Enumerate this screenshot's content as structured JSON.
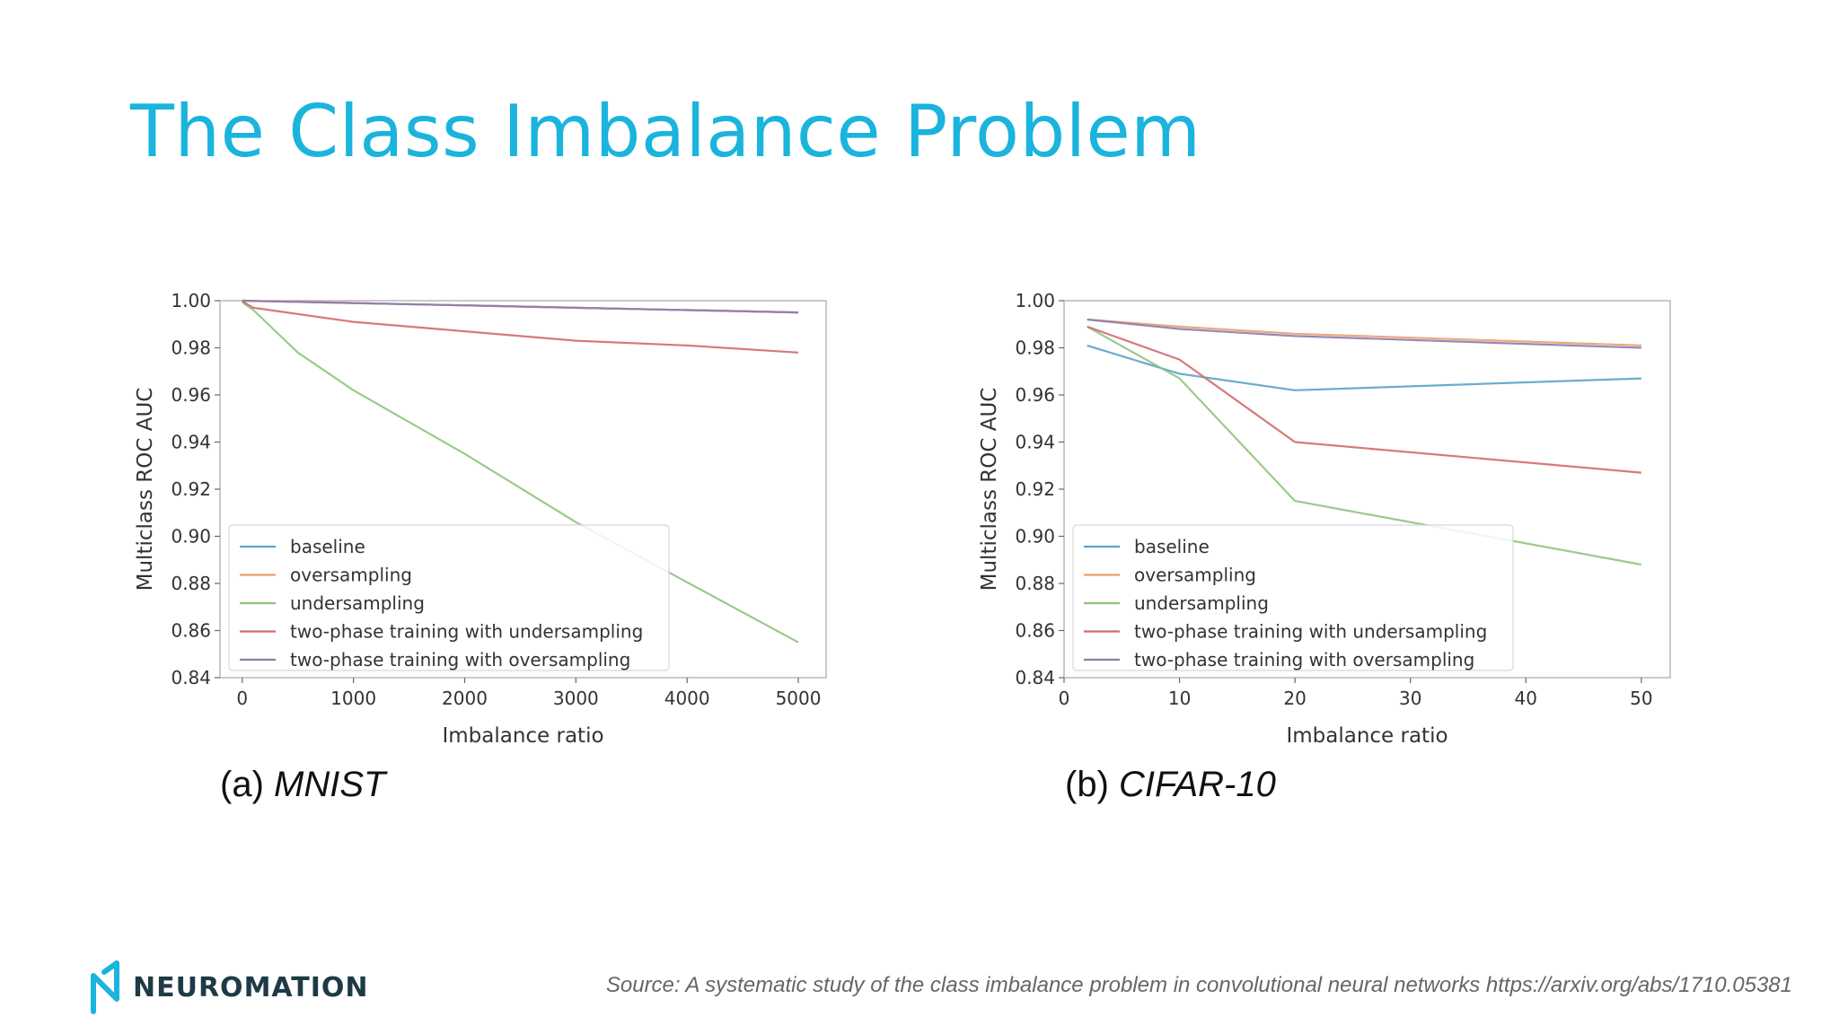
{
  "slide": {
    "title": "The Class Imbalance Problem",
    "source": "Source: A systematic study of the class imbalance problem in convolutional neural networks https://arxiv.org/abs/1710.05381",
    "logo_text": "NEUROMATION",
    "logo_icon": "neuromation-logo-icon",
    "caption_a_label": "(a)",
    "caption_a_name": "MNIST",
    "caption_b_label": "(b)",
    "caption_b_name": "CIFAR-10",
    "colors": {
      "title": "#1ab4dd",
      "logo": "#1f3a47"
    }
  },
  "chart_data": [
    {
      "type": "line",
      "title": "",
      "xlabel": "Imbalance ratio",
      "ylabel": "Multiclass ROC AUC",
      "xlim": [
        -200,
        5250
      ],
      "ylim": [
        0.84,
        1.0
      ],
      "xticks": [
        0,
        1000,
        2000,
        3000,
        4000,
        5000
      ],
      "xtick_labels": [
        "0",
        "1000",
        "2000",
        "3000",
        "4000",
        "5000"
      ],
      "yticks": [
        0.84,
        0.86,
        0.88,
        0.9,
        0.92,
        0.94,
        0.96,
        0.98,
        1.0
      ],
      "ytick_labels": [
        "0.84",
        "0.86",
        "0.88",
        "0.90",
        "0.92",
        "0.94",
        "0.96",
        "0.98",
        "1.00"
      ],
      "legend_position": "lower-left",
      "series": [
        {
          "name": "baseline",
          "color": "#5aa3c8",
          "x": [
            1,
            10,
            100,
            1000,
            5000
          ],
          "values": [
            1.0,
            1.0,
            0.9999,
            0.999,
            0.995
          ]
        },
        {
          "name": "oversampling",
          "color": "#e8a070",
          "x": [
            1,
            10,
            100,
            1000,
            5000
          ],
          "values": [
            1.0,
            1.0,
            0.9999,
            0.999,
            0.995
          ]
        },
        {
          "name": "undersampling",
          "color": "#8fc47e",
          "x": [
            1,
            10,
            100,
            500,
            1000,
            2000,
            3000,
            5000
          ],
          "values": [
            1.0,
            0.999,
            0.996,
            0.978,
            0.962,
            0.935,
            0.906,
            0.855
          ]
        },
        {
          "name": "two-phase training with undersampling",
          "color": "#d46a6a",
          "x": [
            1,
            10,
            100,
            1000,
            2000,
            3000,
            4000,
            5000
          ],
          "values": [
            1.0,
            0.9995,
            0.997,
            0.991,
            0.987,
            0.983,
            0.981,
            0.978
          ]
        },
        {
          "name": "two-phase training with oversampling",
          "color": "#8f7ab0",
          "x": [
            1,
            10,
            100,
            1000,
            5000
          ],
          "values": [
            1.0,
            1.0,
            0.9999,
            0.999,
            0.995
          ]
        }
      ]
    },
    {
      "type": "line",
      "title": "",
      "xlabel": "Imbalance ratio",
      "ylabel": "Multiclass ROC AUC",
      "xlim": [
        0,
        52.5
      ],
      "ylim": [
        0.84,
        1.0
      ],
      "xticks": [
        0,
        10,
        20,
        30,
        40,
        50
      ],
      "xtick_labels": [
        "0",
        "10",
        "20",
        "30",
        "40",
        "50"
      ],
      "yticks": [
        0.84,
        0.86,
        0.88,
        0.9,
        0.92,
        0.94,
        0.96,
        0.98,
        1.0
      ],
      "ytick_labels": [
        "0.84",
        "0.86",
        "0.88",
        "0.90",
        "0.92",
        "0.94",
        "0.96",
        "0.98",
        "1.00"
      ],
      "legend_position": "lower-left",
      "series": [
        {
          "name": "baseline",
          "color": "#5aa3c8",
          "x": [
            2,
            10,
            20,
            50
          ],
          "values": [
            0.981,
            0.969,
            0.962,
            0.967
          ]
        },
        {
          "name": "oversampling",
          "color": "#e8a070",
          "x": [
            2,
            10,
            20,
            50
          ],
          "values": [
            0.992,
            0.989,
            0.986,
            0.981
          ]
        },
        {
          "name": "undersampling",
          "color": "#8fc47e",
          "x": [
            2,
            10,
            20,
            50
          ],
          "values": [
            0.989,
            0.967,
            0.915,
            0.888
          ]
        },
        {
          "name": "two-phase training with undersampling",
          "color": "#d46a6a",
          "x": [
            2,
            10,
            20,
            50
          ],
          "values": [
            0.989,
            0.975,
            0.94,
            0.927
          ]
        },
        {
          "name": "two-phase training with oversampling",
          "color": "#8f7ab0",
          "x": [
            2,
            10,
            20,
            50
          ],
          "values": [
            0.992,
            0.988,
            0.985,
            0.98
          ]
        }
      ]
    }
  ]
}
